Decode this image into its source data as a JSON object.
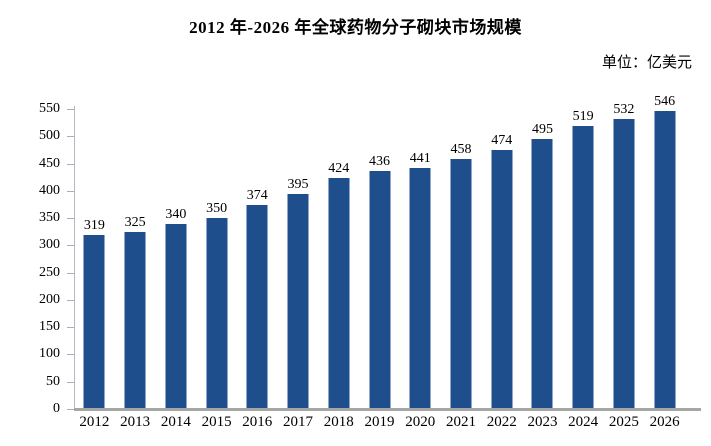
{
  "title": "2012 年-2026 年全球药物分子砌块市场规模",
  "unit_label": "单位：亿美元",
  "colors": {
    "bar": "#1F4E8C",
    "baseline": "#a6a6a6",
    "y_axis": "#b3b9c3",
    "text": "#000000"
  },
  "chart_data": {
    "type": "bar",
    "title": "2012 年-2026 年全球药物分子砌块市场规模",
    "unit": "亿美元",
    "categories": [
      "2012",
      "2013",
      "2014",
      "2015",
      "2016",
      "2017",
      "2018",
      "2019",
      "2020",
      "2021",
      "2022",
      "2023",
      "2024",
      "2025",
      "2026"
    ],
    "values": [
      319,
      325,
      340,
      350,
      374,
      395,
      424,
      436,
      441,
      458,
      474,
      495,
      519,
      532,
      546
    ],
    "value_labels_shown": true,
    "xlabel": "",
    "ylabel": "",
    "ylim": [
      0,
      550
    ],
    "yticks": [
      0,
      50,
      100,
      150,
      200,
      250,
      300,
      350,
      400,
      450,
      500,
      550
    ],
    "grid": false,
    "legend": false
  }
}
